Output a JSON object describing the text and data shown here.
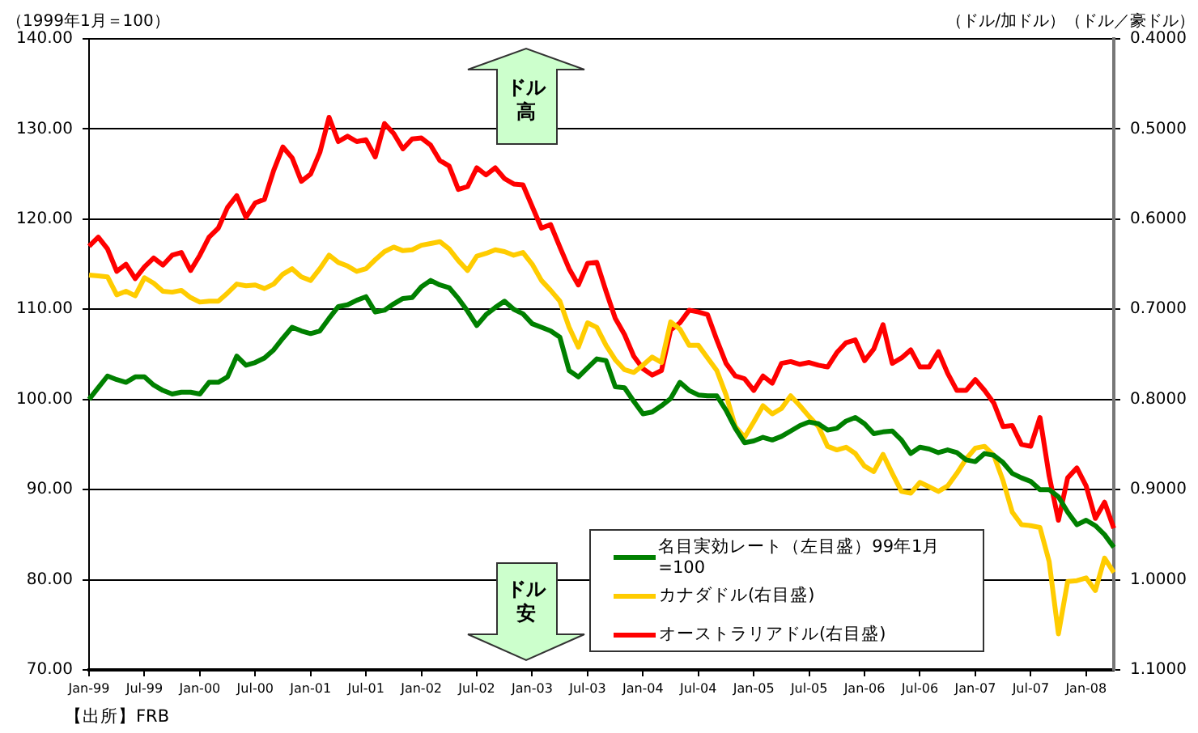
{
  "chart_data": {
    "type": "line",
    "ylabel": "（1999年1月＝100）",
    "y2label": "（ドル/加ドル）（ドル／豪ドル）",
    "categories": [
      "Jan-99",
      null,
      null,
      null,
      null,
      null,
      "Jul-99",
      null,
      null,
      null,
      null,
      null,
      "Jan-00",
      null,
      null,
      null,
      null,
      null,
      "Jul-00",
      null,
      null,
      null,
      null,
      null,
      "Jan-01",
      null,
      null,
      null,
      null,
      null,
      "Jul-01",
      null,
      null,
      null,
      null,
      null,
      "Jan-02",
      null,
      null,
      null,
      null,
      null,
      "Jul-02",
      null,
      null,
      null,
      null,
      null,
      "Jan-03",
      null,
      null,
      null,
      null,
      null,
      "Jul-03",
      null,
      null,
      null,
      null,
      null,
      "Jan-04",
      null,
      null,
      null,
      null,
      null,
      "Jul-04",
      null,
      null,
      null,
      null,
      null,
      "Jan-05",
      null,
      null,
      null,
      null,
      null,
      "Jul-05",
      null,
      null,
      null,
      null,
      null,
      "Jan-06",
      null,
      null,
      null,
      null,
      null,
      "Jul-06",
      null,
      null,
      null,
      null,
      null,
      "Jan-07",
      null,
      null,
      null,
      null,
      null,
      "Jul-07",
      null,
      null,
      null,
      null,
      null,
      "Jan-08",
      null,
      null,
      null
    ],
    "series": [
      {
        "name": "名目実効レート（左目盛）99年1月=100",
        "color": "#008000",
        "values": [
          100.0,
          101.3,
          102.6,
          102.2,
          101.9,
          102.5,
          102.5,
          101.6,
          101.0,
          100.6,
          100.8,
          100.8,
          100.6,
          101.9,
          101.9,
          102.5,
          104.8,
          103.8,
          104.1,
          104.6,
          105.5,
          106.8,
          108.0,
          107.6,
          107.3,
          107.6,
          109.0,
          110.3,
          110.5,
          111.0,
          111.4,
          109.7,
          109.9,
          110.6,
          111.2,
          111.3,
          112.5,
          113.2,
          112.7,
          112.4,
          111.2,
          109.8,
          108.2,
          109.4,
          110.2,
          110.9,
          110.0,
          109.5,
          108.4,
          108.0,
          107.6,
          106.9,
          103.2,
          102.5,
          103.5,
          104.5,
          104.3,
          101.4,
          101.3,
          99.8,
          98.4,
          98.6,
          99.3,
          100.1,
          101.9,
          101.0,
          100.5,
          100.4,
          100.4,
          98.8,
          96.8,
          95.2,
          95.4,
          95.8,
          95.5,
          95.9,
          96.5,
          97.1,
          97.5,
          97.3,
          96.6,
          96.8,
          97.6,
          98.0,
          97.3,
          96.2,
          96.4,
          96.5,
          95.5,
          94.0,
          94.7,
          94.5,
          94.1,
          94.4,
          94.1,
          93.3,
          93.1,
          94.0,
          93.8,
          93.0,
          91.8,
          91.3,
          90.9,
          90.0,
          90.0,
          89.2,
          87.5,
          86.1,
          86.6,
          86.0,
          85.0,
          83.6
        ]
      },
      {
        "name": "カナダドル(右目盛)",
        "color": "#ffcc00",
        "axis": "y2",
        "values": [
          0.662,
          0.663,
          0.664,
          0.684,
          0.68,
          0.685,
          0.665,
          0.671,
          0.68,
          0.681,
          0.679,
          0.687,
          0.692,
          0.691,
          0.691,
          0.682,
          0.672,
          0.674,
          0.673,
          0.677,
          0.672,
          0.661,
          0.655,
          0.664,
          0.668,
          0.655,
          0.64,
          0.648,
          0.652,
          0.658,
          0.655,
          0.645,
          0.636,
          0.631,
          0.635,
          0.634,
          0.629,
          0.627,
          0.625,
          0.633,
          0.646,
          0.657,
          0.641,
          0.638,
          0.634,
          0.636,
          0.64,
          0.637,
          0.65,
          0.668,
          0.679,
          0.691,
          0.72,
          0.742,
          0.715,
          0.72,
          0.74,
          0.756,
          0.767,
          0.77,
          0.762,
          0.753,
          0.759,
          0.714,
          0.722,
          0.74,
          0.74,
          0.754,
          0.768,
          0.795,
          0.83,
          0.842,
          0.825,
          0.807,
          0.816,
          0.81,
          0.796,
          0.807,
          0.819,
          0.83,
          0.852,
          0.856,
          0.853,
          0.86,
          0.874,
          0.88,
          0.861,
          0.882,
          0.902,
          0.904,
          0.892,
          0.897,
          0.902,
          0.896,
          0.882,
          0.866,
          0.854,
          0.852,
          0.862,
          0.89,
          0.925,
          0.939,
          0.94,
          0.942,
          0.98,
          1.06,
          1.002,
          1.001,
          0.998,
          1.012,
          0.976,
          0.992
        ]
      },
      {
        "name": "オーストラリアドル(右目盛)",
        "color": "#ff0000",
        "axis": "y2",
        "values": [
          0.63,
          0.62,
          0.633,
          0.658,
          0.65,
          0.666,
          0.653,
          0.643,
          0.651,
          0.64,
          0.637,
          0.657,
          0.64,
          0.62,
          0.61,
          0.587,
          0.574,
          0.598,
          0.582,
          0.578,
          0.546,
          0.52,
          0.532,
          0.558,
          0.55,
          0.526,
          0.487,
          0.514,
          0.508,
          0.514,
          0.512,
          0.531,
          0.494,
          0.505,
          0.522,
          0.511,
          0.51,
          0.518,
          0.535,
          0.541,
          0.567,
          0.564,
          0.543,
          0.551,
          0.543,
          0.555,
          0.561,
          0.562,
          0.586,
          0.61,
          0.606,
          0.631,
          0.655,
          0.673,
          0.649,
          0.648,
          0.68,
          0.71,
          0.728,
          0.752,
          0.766,
          0.773,
          0.768,
          0.723,
          0.715,
          0.701,
          0.703,
          0.706,
          0.734,
          0.76,
          0.774,
          0.777,
          0.79,
          0.774,
          0.782,
          0.76,
          0.758,
          0.761,
          0.759,
          0.762,
          0.764,
          0.748,
          0.737,
          0.734,
          0.757,
          0.744,
          0.717,
          0.76,
          0.754,
          0.745,
          0.764,
          0.764,
          0.747,
          0.771,
          0.79,
          0.79,
          0.778,
          0.79,
          0.804,
          0.83,
          0.829,
          0.85,
          0.852,
          0.82,
          0.885,
          0.934,
          0.887,
          0.876,
          0.896,
          0.932,
          0.914,
          0.943
        ]
      }
    ],
    "ylim": [
      70,
      140
    ],
    "yticks": [
      {
        "value": 70,
        "label": "70.00"
      },
      {
        "value": 80,
        "label": "80.00"
      },
      {
        "value": 90,
        "label": "90.00"
      },
      {
        "value": 100,
        "label": "100.00"
      },
      {
        "value": 110,
        "label": "110.00"
      },
      {
        "value": 120,
        "label": "120.00"
      },
      {
        "value": 130,
        "label": "130.00"
      },
      {
        "value": 140,
        "label": "140.00"
      }
    ],
    "y2lim": [
      1.1,
      0.4
    ],
    "y2ticks": [
      {
        "value": 0.4,
        "label": "0.4000"
      },
      {
        "value": 0.5,
        "label": "0.5000"
      },
      {
        "value": 0.6,
        "label": "0.6000"
      },
      {
        "value": 0.7,
        "label": "0.7000"
      },
      {
        "value": 0.8,
        "label": "0.8000"
      },
      {
        "value": 0.9,
        "label": "0.9000"
      },
      {
        "value": 1.0,
        "label": "1.0000"
      },
      {
        "value": 1.1,
        "label": "1.1000"
      }
    ],
    "grid": "y",
    "legend": "bottom",
    "marker": "none",
    "line_style": "solid",
    "annotations": [
      "ドル高",
      "ドル安",
      "【出所】FRB"
    ]
  }
}
